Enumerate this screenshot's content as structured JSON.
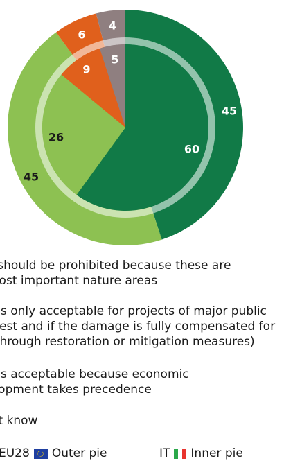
{
  "chart_data": {
    "type": "pie",
    "series": [
      {
        "name": "Outer pie",
        "region": "EU28",
        "values": [
          45,
          45,
          6,
          4
        ],
        "colors": [
          "#117a47",
          "#8dc152",
          "#e0601c",
          "#8f7f80"
        ]
      },
      {
        "name": "Inner pie",
        "region": "IT",
        "values": [
          60,
          26,
          9,
          5
        ],
        "colors": [
          "#117a47",
          "#8dc152",
          "#e0601c",
          "#8f7f80"
        ]
      }
    ],
    "categories": [
      "...s should be prohibited because these are\n...most important nature areas",
      "...s is only acceptable for projects of major public\n...erest and if the damage is fully compensated for\n...through restoration or mitigation measures)",
      "...s is acceptable because economic\n...elopment takes precedence",
      "...n't know"
    ]
  },
  "legend": {
    "items": [
      "s should be prohibited because these are\n most important nature areas",
      "s is only acceptable for projects of major public\nerest and if the damage is fully compensated for\n. through restoration or mitigation measures)",
      "s is acceptable because economic\nelopment takes precedence",
      "n't know"
    ],
    "eu_label": "EU28",
    "outer_label": "Outer pie",
    "it_label": "IT",
    "inner_label": "Inner pie",
    "eu_flag_color": "#1f3fa0",
    "it_flag_colors": [
      "#2aa84a",
      "#ffffff",
      "#e8332e"
    ]
  }
}
